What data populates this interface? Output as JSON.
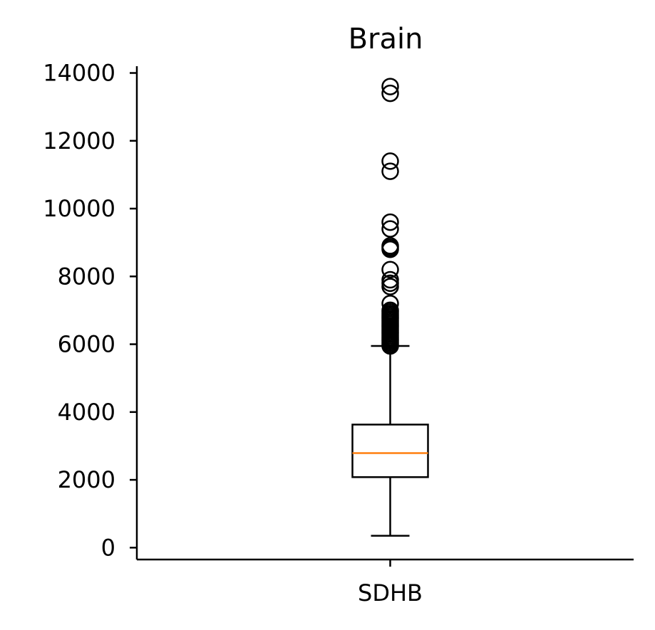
{
  "chart_data": {
    "type": "boxplot",
    "title": "Brain",
    "xlabel": "",
    "ylabel": "",
    "categories": [
      "SDHB"
    ],
    "ylim": [
      -350,
      14200
    ],
    "yticks": [
      0,
      2000,
      4000,
      6000,
      8000,
      10000,
      12000,
      14000
    ],
    "grid": false,
    "box": {
      "whisker_low": 350,
      "q1": 2080,
      "median": 2790,
      "q3": 3630,
      "whisker_high": 5950
    },
    "outliers": [
      5950,
      6000,
      6050,
      6100,
      6150,
      6200,
      6250,
      6300,
      6350,
      6400,
      6450,
      6500,
      6550,
      6600,
      6650,
      6700,
      6750,
      6800,
      6850,
      6900,
      6950,
      7000,
      7200,
      7700,
      7800,
      7900,
      8200,
      8800,
      8850,
      8900,
      9400,
      9600,
      11100,
      11400,
      13400,
      13600
    ],
    "colors": {
      "box": "#000000",
      "median": "#ff7f0e",
      "outlier": "#000000"
    }
  }
}
